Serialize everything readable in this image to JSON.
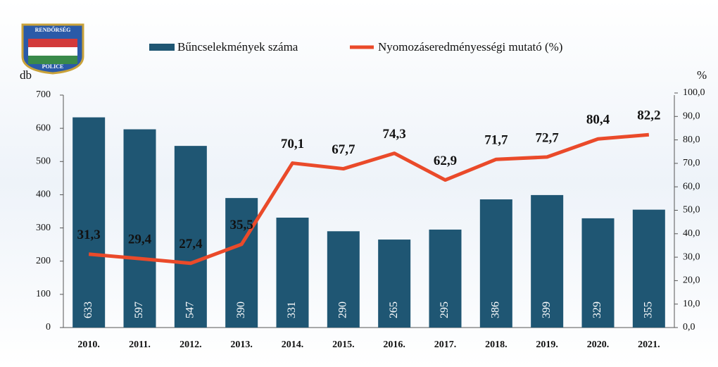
{
  "logo": {
    "top": "RENDŐRSÉG",
    "bottom": "POLICE"
  },
  "chart_data": {
    "type": "bar-line",
    "ylabel": "db",
    "y2label": "%",
    "categories": [
      "2010.",
      "2011.",
      "2012.",
      "2013.",
      "2014.",
      "2015.",
      "2016.",
      "2017.",
      "2018.",
      "2019.",
      "2020.",
      "2021."
    ],
    "series": [
      {
        "name": "Bűncselekmények száma",
        "type": "bar",
        "color": "#1f5673",
        "values": [
          633,
          597,
          547,
          390,
          331,
          290,
          265,
          295,
          386,
          399,
          329,
          355
        ]
      },
      {
        "name": "Nyomozáseredményességi mutató (%)",
        "type": "line",
        "axis": "y2",
        "color": "#ea4a2a",
        "values": [
          31.3,
          29.4,
          27.4,
          35.5,
          70.1,
          67.7,
          74.3,
          62.9,
          71.7,
          72.7,
          80.4,
          82.2
        ],
        "value_labels": [
          "31,3",
          "29,4",
          "27,4",
          "35,5",
          "70,1",
          "67,7",
          "74,3",
          "62,9",
          "71,7",
          "72,7",
          "80,4",
          "82,2"
        ]
      }
    ],
    "ylim": [
      0,
      700
    ],
    "yticks": [
      0,
      100,
      200,
      300,
      400,
      500,
      600,
      700
    ],
    "y2lim": [
      0,
      100
    ],
    "y2ticks": [
      {
        "value": 0,
        "label": "0,0"
      },
      {
        "value": 10,
        "label": "10,0"
      },
      {
        "value": 20,
        "label": "20,0"
      },
      {
        "value": 30,
        "label": "30,0"
      },
      {
        "value": 40,
        "label": "40,0"
      },
      {
        "value": 50,
        "label": "50,0"
      },
      {
        "value": 60,
        "label": "60,0"
      },
      {
        "value": 70,
        "label": "70,0"
      },
      {
        "value": 80,
        "label": "80,0"
      },
      {
        "value": 90,
        "label": "90,0"
      },
      {
        "value": 100,
        "label": "100,0"
      }
    ],
    "legend": "top"
  }
}
